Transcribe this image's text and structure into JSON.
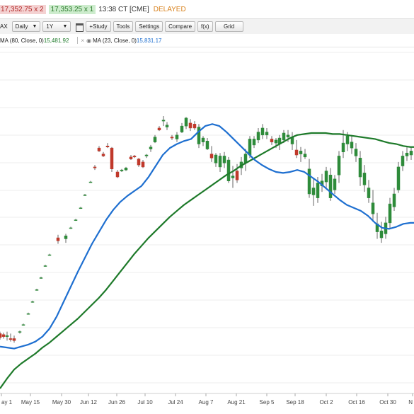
{
  "quote": {
    "bid": "17,352.75 x 2",
    "ask": "17,353.25 x 1",
    "time": "13:38 CT [CME]",
    "status": "DELAYED",
    "colors": {
      "bid_bg": "#f4d2d2",
      "bid_text": "#b22a2a",
      "ask_bg": "#cdeccd",
      "ask_text": "#2e7d2e",
      "delayed": "#d9831f"
    }
  },
  "toolbar": {
    "max_label": "AX",
    "interval": "Daily",
    "range": "1Y",
    "study_label": "+Study",
    "tools_label": "Tools",
    "settings_label": "Settings",
    "compare_label": "Compare",
    "fx_label": "f(x)",
    "grid_label": "Grid"
  },
  "studies": [
    {
      "name": "MA (80, Close, 0)",
      "value": "15,481.92",
      "color": "#1e7a2a"
    },
    {
      "name": "MA (23, Close, 0)",
      "value": "15,831.17",
      "color": "#1e6fd0"
    }
  ],
  "chart_data": {
    "type": "candlestick",
    "x_tick_labels": [
      "ay 1",
      "May 15",
      "May 30",
      "Jun 12",
      "Jun 26",
      "Jul 10",
      "Jul 24",
      "Aug 7",
      "Aug 21",
      "Sep 5",
      "Sep 18",
      "Oct 2",
      "Oct 16",
      "Oct 30",
      "N"
    ],
    "gridlines": "horizontal",
    "series": [
      {
        "name": "MA (80, Close, 0)",
        "color": "#1e7a2a",
        "points": [
          [
            0,
            5
          ],
          [
            10,
            15
          ],
          [
            20,
            24
          ],
          [
            30,
            30
          ],
          [
            40,
            35
          ],
          [
            50,
            40
          ],
          [
            60,
            46
          ],
          [
            70,
            51
          ],
          [
            80,
            57
          ],
          [
            90,
            63
          ],
          [
            100,
            69
          ],
          [
            110,
            75
          ],
          [
            120,
            82
          ],
          [
            130,
            89
          ],
          [
            140,
            96
          ],
          [
            150,
            104
          ],
          [
            160,
            113
          ],
          [
            170,
            122
          ],
          [
            180,
            131
          ],
          [
            190,
            140
          ],
          [
            200,
            148
          ],
          [
            210,
            156
          ],
          [
            220,
            163
          ],
          [
            230,
            170
          ],
          [
            240,
            177
          ],
          [
            250,
            183
          ],
          [
            260,
            189
          ],
          [
            270,
            194
          ],
          [
            280,
            199
          ],
          [
            290,
            204
          ],
          [
            300,
            209
          ],
          [
            310,
            214
          ],
          [
            320,
            219
          ],
          [
            330,
            223
          ],
          [
            340,
            228
          ],
          [
            350,
            232
          ],
          [
            360,
            236
          ],
          [
            370,
            240
          ],
          [
            380,
            244
          ],
          [
            390,
            248
          ],
          [
            400,
            252
          ],
          [
            410,
            256
          ],
          [
            420,
            259
          ],
          [
            430,
            260
          ],
          [
            440,
            261
          ],
          [
            450,
            261
          ],
          [
            460,
            261
          ],
          [
            470,
            260
          ],
          [
            480,
            260
          ],
          [
            490,
            259
          ],
          [
            500,
            258
          ],
          [
            510,
            257
          ],
          [
            520,
            256
          ],
          [
            530,
            255
          ],
          [
            540,
            253
          ],
          [
            550,
            251
          ],
          [
            560,
            250
          ],
          [
            570,
            248
          ],
          [
            580,
            247
          ],
          [
            585,
            247
          ]
        ]
      },
      {
        "name": "MA (23, Close, 0)",
        "color": "#1e6fd0",
        "points": [
          [
            0,
            47
          ],
          [
            10,
            46
          ],
          [
            20,
            45
          ],
          [
            30,
            47
          ],
          [
            40,
            49
          ],
          [
            50,
            52
          ],
          [
            60,
            57
          ],
          [
            70,
            65
          ],
          [
            80,
            77
          ],
          [
            90,
            92
          ],
          [
            100,
            107
          ],
          [
            110,
            122
          ],
          [
            120,
            136
          ],
          [
            130,
            150
          ],
          [
            140,
            162
          ],
          [
            150,
            174
          ],
          [
            160,
            184
          ],
          [
            170,
            192
          ],
          [
            180,
            198
          ],
          [
            190,
            203
          ],
          [
            200,
            208
          ],
          [
            210,
            217
          ],
          [
            220,
            228
          ],
          [
            230,
            239
          ],
          [
            240,
            246
          ],
          [
            250,
            250
          ],
          [
            260,
            253
          ],
          [
            270,
            255
          ],
          [
            280,
            262
          ],
          [
            290,
            268
          ],
          [
            300,
            270
          ],
          [
            310,
            268
          ],
          [
            320,
            262
          ],
          [
            330,
            255
          ],
          [
            340,
            248
          ],
          [
            350,
            241
          ],
          [
            360,
            234
          ],
          [
            370,
            229
          ],
          [
            380,
            225
          ],
          [
            390,
            222
          ],
          [
            400,
            221
          ],
          [
            410,
            222
          ],
          [
            420,
            224
          ],
          [
            430,
            222
          ],
          [
            440,
            217
          ],
          [
            450,
            212
          ],
          [
            460,
            206
          ],
          [
            470,
            200
          ],
          [
            480,
            194
          ],
          [
            490,
            189
          ],
          [
            500,
            186
          ],
          [
            510,
            183
          ],
          [
            520,
            178
          ],
          [
            530,
            171
          ],
          [
            540,
            166
          ],
          [
            550,
            165
          ],
          [
            560,
            167
          ],
          [
            570,
            170
          ],
          [
            580,
            171
          ],
          [
            585,
            171
          ]
        ]
      }
    ],
    "candles": [
      [
        0,
        60,
        62,
        54,
        56
      ],
      [
        5,
        59,
        61,
        55,
        57
      ],
      [
        10,
        57,
        62,
        53,
        58
      ],
      [
        15,
        55,
        60,
        52,
        54
      ],
      [
        20,
        55,
        58,
        51,
        53
      ],
      [
        28,
        62,
        63,
        60,
        62
      ],
      [
        33,
        69,
        70,
        68,
        69
      ],
      [
        40,
        80,
        81,
        79,
        80
      ],
      [
        46,
        92,
        93,
        91,
        92
      ],
      [
        52,
        104,
        105,
        103,
        104
      ],
      [
        58,
        116,
        117,
        115,
        116
      ],
      [
        64,
        128,
        129,
        127,
        128
      ],
      [
        70,
        139,
        140,
        138,
        139
      ],
      [
        82,
        156,
        159,
        150,
        153
      ],
      [
        93,
        155,
        160,
        151,
        158
      ],
      [
        100,
        166,
        167,
        165,
        166
      ],
      [
        107,
        174,
        175,
        173,
        174
      ],
      [
        114,
        186,
        187,
        185,
        186
      ],
      [
        120,
        199,
        200,
        198,
        199
      ],
      [
        128,
        212,
        213,
        211,
        212
      ],
      [
        134,
        227,
        229,
        224,
        226
      ],
      [
        140,
        246,
        248,
        242,
        243
      ],
      [
        146,
        240,
        242,
        237,
        238
      ],
      [
        152,
        248,
        251,
        246,
        247
      ],
      [
        158,
        246,
        247,
        222,
        225
      ],
      [
        166,
        222,
        224,
        216,
        217
      ],
      [
        172,
        223,
        225,
        222,
        224
      ],
      [
        178,
        224,
        227,
        223,
        226
      ],
      [
        185,
        237,
        239,
        234,
        235
      ],
      [
        190,
        238,
        239,
        236,
        237
      ],
      [
        196,
        235,
        236,
        227,
        229
      ],
      [
        202,
        232,
        234,
        226,
        227
      ],
      [
        207,
        238,
        240,
        236,
        239
      ],
      [
        213,
        245,
        249,
        242,
        247
      ],
      [
        219,
        252,
        259,
        251,
        257
      ],
      [
        225,
        266,
        268,
        263,
        264
      ],
      [
        231,
        273,
        278,
        268,
        274
      ],
      [
        236,
        267,
        272,
        264,
        269
      ],
      [
        243,
        257,
        259,
        254,
        256
      ],
      [
        250,
        255,
        262,
        252,
        259
      ],
      [
        257,
        262,
        271,
        261,
        268
      ],
      [
        263,
        268,
        277,
        265,
        276
      ],
      [
        269,
        271,
        275,
        263,
        266
      ],
      [
        275,
        270,
        273,
        264,
        266
      ],
      [
        281,
        250,
        270,
        246,
        267
      ],
      [
        287,
        252,
        258,
        248,
        256
      ],
      [
        293,
        245,
        256,
        244,
        253
      ],
      [
        299,
        240,
        248,
        232,
        236
      ],
      [
        305,
        231,
        241,
        227,
        239
      ],
      [
        311,
        227,
        241,
        222,
        238
      ],
      [
        317,
        231,
        242,
        226,
        238
      ],
      [
        323,
        213,
        237,
        211,
        234
      ],
      [
        329,
        216,
        228,
        206,
        218
      ],
      [
        335,
        223,
        230,
        211,
        214
      ],
      [
        341,
        226,
        237,
        219,
        232
      ],
      [
        347,
        231,
        245,
        223,
        240
      ],
      [
        353,
        239,
        258,
        236,
        255
      ],
      [
        359,
        249,
        258,
        246,
        255
      ],
      [
        365,
        254,
        266,
        251,
        262
      ],
      [
        371,
        259,
        270,
        255,
        266
      ],
      [
        377,
        259,
        266,
        255,
        262
      ],
      [
        384,
        255,
        258,
        249,
        252
      ],
      [
        390,
        251,
        256,
        246,
        254
      ],
      [
        395,
        250,
        259,
        244,
        256
      ],
      [
        401,
        254,
        264,
        251,
        261
      ],
      [
        407,
        257,
        264,
        252,
        259
      ],
      [
        413,
        250,
        262,
        244,
        257
      ],
      [
        419,
        244,
        254,
        236,
        239
      ],
      [
        425,
        240,
        247,
        232,
        243
      ],
      [
        431,
        237,
        245,
        235,
        240
      ],
      [
        437,
        200,
        235,
        196,
        225
      ],
      [
        443,
        199,
        216,
        188,
        206
      ],
      [
        449,
        196,
        217,
        191,
        211
      ],
      [
        455,
        208,
        220,
        202,
        213
      ],
      [
        461,
        212,
        227,
        205,
        223
      ],
      [
        467,
        196,
        226,
        193,
        219
      ],
      [
        473,
        204,
        219,
        200,
        215
      ],
      [
        479,
        219,
        243,
        211,
        238
      ],
      [
        485,
        242,
        264,
        236,
        251
      ],
      [
        491,
        250,
        262,
        243,
        258
      ],
      [
        497,
        246,
        259,
        240,
        252
      ],
      [
        503,
        238,
        251,
        232,
        245
      ],
      [
        509,
        217,
        243,
        208,
        236
      ],
      [
        515,
        209,
        229,
        202,
        221
      ],
      [
        521,
        196,
        214,
        191,
        206
      ],
      [
        527,
        180,
        204,
        172,
        191
      ],
      [
        533,
        162,
        181,
        155,
        170
      ],
      [
        539,
        156,
        172,
        151,
        163
      ],
      [
        545,
        160,
        177,
        155,
        171
      ],
      [
        551,
        171,
        196,
        166,
        190
      ],
      [
        557,
        187,
        206,
        183,
        200
      ],
      [
        563,
        204,
        232,
        201,
        227
      ],
      [
        569,
        228,
        243,
        223,
        238
      ],
      [
        575,
        238,
        247,
        233,
        241
      ],
      [
        581,
        239,
        247,
        234,
        243
      ]
    ]
  }
}
